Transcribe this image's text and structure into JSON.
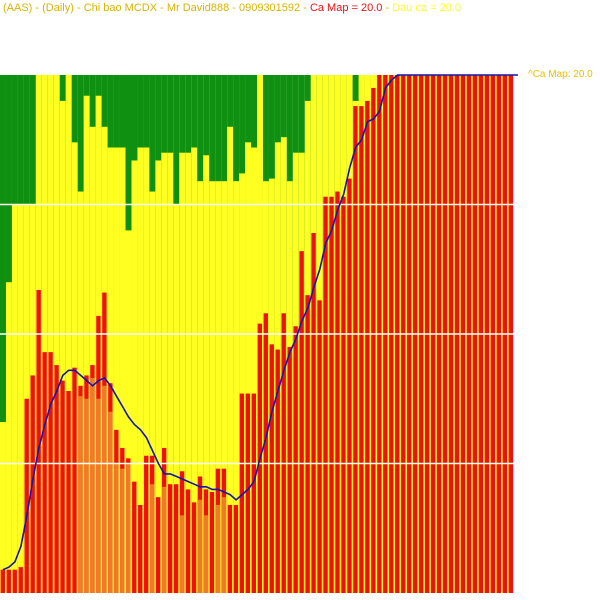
{
  "header": {
    "ticker": "(AAS)",
    "period": "(Daily)",
    "indicator": "Chi bao MCDX",
    "author": "Mr David888",
    "phone": "0909301592",
    "ca_map_label": "Ca Map = 20.0",
    "dau_ca_label": "Dau ca = 20.0",
    "separator": " - "
  },
  "colors": {
    "green": "#109010",
    "yellow": "#ffff22",
    "orange": "#ee7a2a",
    "red": "#ee1111",
    "line": "#1515b0",
    "grid": "#ffffff",
    "header_gray": "#d8b400",
    "header_red": "#ee1111"
  },
  "chart_data": {
    "type": "bar",
    "title": "",
    "ylim": [
      0,
      20
    ],
    "grid_values": [
      5,
      10,
      15
    ],
    "last_value_label": "^Ca Map: 20.0",
    "ca_map": [
      0.9,
      0.9,
      0.9,
      1.0,
      7.5,
      8.4,
      11.7,
      9.3,
      9.3,
      8.8,
      8.2,
      7.8,
      8.7,
      8.0,
      8.4,
      8.8,
      10.7,
      11.6,
      8.1,
      6.3,
      5.6,
      5.2,
      4.3,
      3.4,
      5.3,
      5.3,
      3.7,
      5.6,
      4.2,
      4.2,
      4.7,
      4.0,
      3.5,
      4.5,
      4.0,
      3.9,
      4.8,
      4.8,
      3.4,
      3.4,
      7.7,
      7.7,
      7.7,
      10.4,
      10.8,
      9.6,
      9.4,
      10.8,
      9.5,
      10.3,
      13.2,
      11.5,
      13.9,
      11.3,
      15.3,
      15.3,
      15.5,
      15.3,
      16.0,
      18.8,
      18.8,
      19.0,
      19.5,
      20.0,
      20.0,
      20.0,
      20.0,
      20.0,
      20.0,
      20.0,
      20.0,
      20.0,
      20.0,
      20.0,
      20.0,
      20.0,
      20.0,
      20.0,
      20.0,
      20.0,
      20.0,
      20.0,
      20.0,
      20.0,
      20.0,
      20.0
    ],
    "dau_ca": [
      0.9,
      0.9,
      0.9,
      1.0,
      7.5,
      8.4,
      11.7,
      9.3,
      9.3,
      8.8,
      8.2,
      7.8,
      8.7,
      7.6,
      7.5,
      8.3,
      7.5,
      8.0,
      7.0,
      5.0,
      4.8,
      5.0,
      4.3,
      3.4,
      5.7,
      4.2,
      3.7,
      4.1,
      4.2,
      4.2,
      3.0,
      4.0,
      3.5,
      3.6,
      3.0,
      3.9,
      3.4,
      3.7,
      3.4,
      3.4,
      7.7,
      7.7,
      7.7,
      10.4,
      10.8,
      9.6,
      9.4,
      10.8,
      9.5,
      10.3,
      13.2,
      11.5,
      13.9,
      11.3,
      15.3,
      15.3,
      15.5,
      15.3,
      16.0,
      18.8,
      18.8,
      19.0,
      19.5,
      20.0,
      20.0,
      20.0,
      20.0,
      20.0,
      20.0,
      20.0,
      20.0,
      20.0,
      20.0,
      20.0,
      20.0,
      20.0,
      20.0,
      20.0,
      20.0,
      20.0,
      20.0,
      20.0,
      20.0,
      20.0,
      20.0,
      20.0
    ],
    "top_series": [
      6.6,
      12.0,
      15.0,
      15.0,
      15.0,
      15.0,
      20.0,
      20.0,
      20.0,
      20.0,
      19.0,
      20.0,
      17.4,
      15.5,
      19.2,
      18.0,
      19.2,
      18.0,
      17.2,
      17.2,
      17.2,
      14.0,
      16.7,
      17.2,
      17.2,
      15.5,
      16.7,
      17.0,
      17.0,
      15.0,
      17.0,
      17.0,
      17.2,
      15.9,
      16.9,
      15.9,
      15.9,
      15.9,
      18.0,
      15.9,
      16.2,
      17.4,
      17.2,
      20.0,
      15.9,
      16.0,
      17.4,
      17.6,
      15.9,
      17.0,
      17.0,
      19.0,
      20.0,
      20.0,
      20.0,
      20.0,
      20.0,
      20.0,
      20.0,
      19.0,
      20.0,
      20.0,
      20.0,
      20.0,
      20.0,
      20.0,
      20.0,
      20.0,
      20.0,
      20.0,
      20.0,
      20.0,
      20.0,
      20.0,
      20.0,
      20.0,
      20.0,
      20.0,
      20.0,
      20.0,
      20.0,
      20.0,
      20.0,
      20.0,
      20.0,
      20.0
    ],
    "line": [
      0.9,
      1.0,
      1.2,
      1.8,
      3.0,
      4.4,
      5.6,
      6.5,
      7.3,
      7.8,
      8.4,
      8.6,
      8.6,
      8.4,
      8.2,
      8.0,
      8.2,
      8.3,
      8.0,
      7.6,
      7.2,
      6.8,
      6.5,
      6.3,
      6.0,
      5.5,
      5.0,
      4.6,
      4.6,
      4.5,
      4.4,
      4.3,
      4.2,
      4.1,
      4.1,
      4.0,
      4.0,
      3.9,
      3.8,
      3.6,
      3.8,
      4.0,
      4.3,
      5.2,
      6.0,
      7.0,
      7.8,
      8.6,
      9.3,
      9.8,
      10.5,
      11.0,
      11.8,
      12.5,
      13.5,
      14.0,
      14.8,
      15.4,
      16.4,
      17.2,
      17.5,
      18.2,
      18.3,
      18.6,
      19.5,
      19.8,
      20.0,
      20.0,
      20.0,
      20.0,
      20.0,
      20.0,
      20.0,
      20.0,
      20.0,
      20.0,
      20.0,
      20.0,
      20.0,
      20.0,
      20.0,
      20.0,
      20.0,
      20.0,
      20.0,
      20.0
    ]
  }
}
